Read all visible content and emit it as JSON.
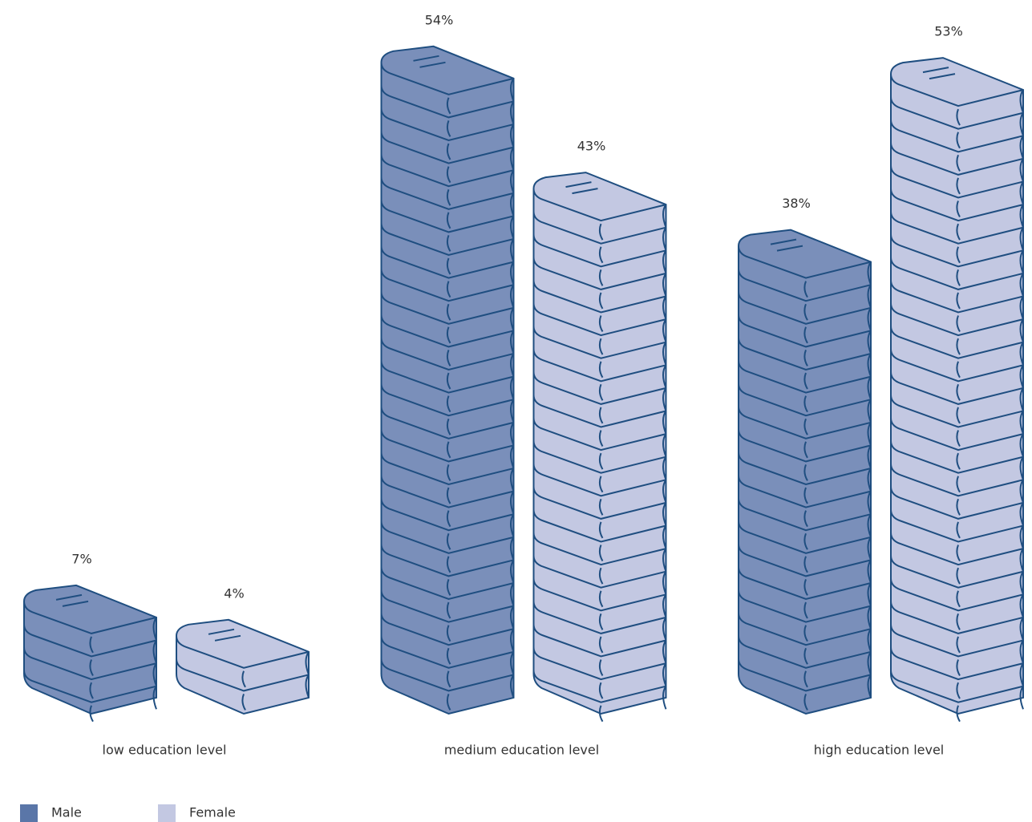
{
  "chart_data": {
    "type": "pictograph-bar",
    "categories": [
      "low education level",
      "medium education level",
      "high education level"
    ],
    "series": [
      {
        "name": "Male",
        "color": "#7a8fba",
        "values": [
          7,
          54,
          38
        ],
        "value_labels": [
          "7%",
          "54%",
          "38%"
        ]
      },
      {
        "name": "Female",
        "color": "#c3c8e2",
        "values": [
          4,
          43,
          53
        ],
        "value_labels": [
          "4%",
          "43%",
          "53%"
        ]
      }
    ]
  }
}
